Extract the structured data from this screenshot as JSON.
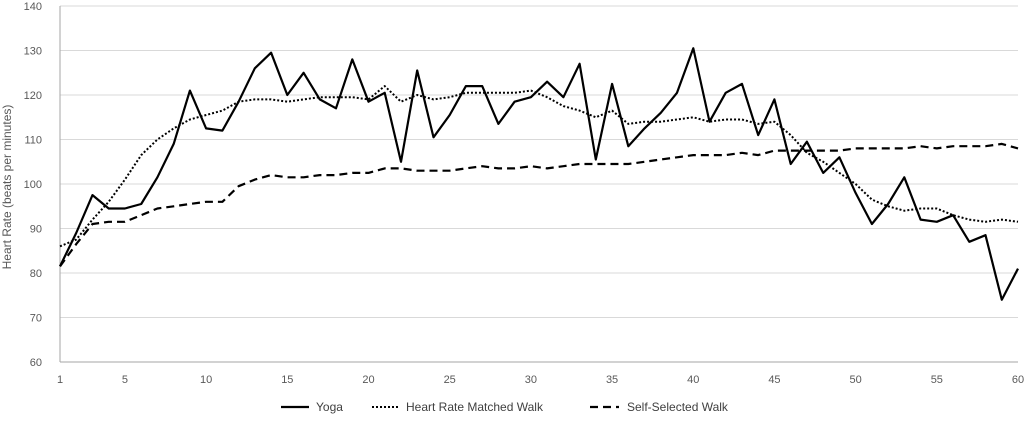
{
  "chart_data": {
    "type": "line",
    "title": "",
    "xlabel": "",
    "ylabel": "Heart Rate (beats per minutes)",
    "xlim": [
      1,
      60
    ],
    "ylim": [
      60,
      140
    ],
    "x_ticks": [
      "1",
      "5",
      "10",
      "15",
      "20",
      "25",
      "30",
      "35",
      "40",
      "45",
      "50",
      "55",
      "60"
    ],
    "y_ticks": [
      "60",
      "70",
      "80",
      "90",
      "100",
      "110",
      "120",
      "130",
      "140"
    ],
    "grid": true,
    "legend_position": "bottom",
    "x": [
      1,
      2,
      3,
      4,
      5,
      6,
      7,
      8,
      9,
      10,
      11,
      12,
      13,
      14,
      15,
      16,
      17,
      18,
      19,
      20,
      21,
      22,
      23,
      24,
      25,
      26,
      27,
      28,
      29,
      30,
      31,
      32,
      33,
      34,
      35,
      36,
      37,
      38,
      39,
      40,
      41,
      42,
      43,
      44,
      45,
      46,
      47,
      48,
      49,
      50,
      51,
      52,
      53,
      54,
      55,
      56,
      57,
      58,
      59,
      60
    ],
    "series": [
      {
        "name": "Yoga",
        "style": "solid",
        "color": "#000000",
        "values": [
          81.5,
          89,
          97.5,
          94.5,
          94.5,
          95.5,
          101.5,
          109,
          121,
          112.5,
          112,
          118.5,
          126,
          129.5,
          120,
          125,
          119,
          117,
          128,
          118.5,
          120.5,
          105,
          125.5,
          110.5,
          115.5,
          122,
          122,
          113.5,
          118.5,
          119.5,
          123,
          119.5,
          127,
          105.5,
          122.5,
          108.5,
          112.5,
          116,
          120.5,
          130.5,
          114,
          120.5,
          122.5,
          111,
          119,
          104.5,
          109.5,
          102.5,
          106,
          98,
          91,
          95.5,
          101.5,
          92,
          91.5,
          93,
          87,
          88.5,
          74,
          81
        ]
      },
      {
        "name": "Heart Rate Matched Walk",
        "style": "dotted",
        "color": "#000000",
        "values": [
          86,
          87.5,
          92,
          96,
          101,
          106.5,
          110,
          112.5,
          114.5,
          115.5,
          116.5,
          118.5,
          119,
          119,
          118.5,
          119,
          119.5,
          119.5,
          119.5,
          119,
          122,
          118.5,
          120,
          119,
          119.5,
          120.5,
          120.5,
          120.5,
          120.5,
          121,
          119.5,
          117.5,
          116.5,
          115,
          116.5,
          113.5,
          114,
          114,
          114.5,
          115,
          114,
          114.5,
          114.5,
          113.5,
          114,
          111,
          107,
          105,
          102.5,
          100,
          96.5,
          95,
          94,
          94.5,
          94.5,
          93,
          92,
          91.5,
          92,
          91.5
        ]
      },
      {
        "name": "Self-Selected Walk",
        "style": "dashed",
        "color": "#000000",
        "values": [
          81.5,
          86.5,
          91,
          91.5,
          91.5,
          93,
          94.5,
          95,
          95.5,
          96,
          96,
          99.5,
          101,
          102,
          101.5,
          101.5,
          102,
          102,
          102.5,
          102.5,
          103.5,
          103.5,
          103,
          103,
          103,
          103.5,
          104,
          103.5,
          103.5,
          104,
          103.5,
          104,
          104.5,
          104.5,
          104.5,
          104.5,
          105,
          105.5,
          106,
          106.5,
          106.5,
          106.5,
          107,
          106.5,
          107.5,
          107.5,
          107.5,
          107.5,
          107.5,
          108,
          108,
          108,
          108,
          108.5,
          108,
          108.5,
          108.5,
          108.5,
          109,
          108
        ]
      }
    ]
  }
}
